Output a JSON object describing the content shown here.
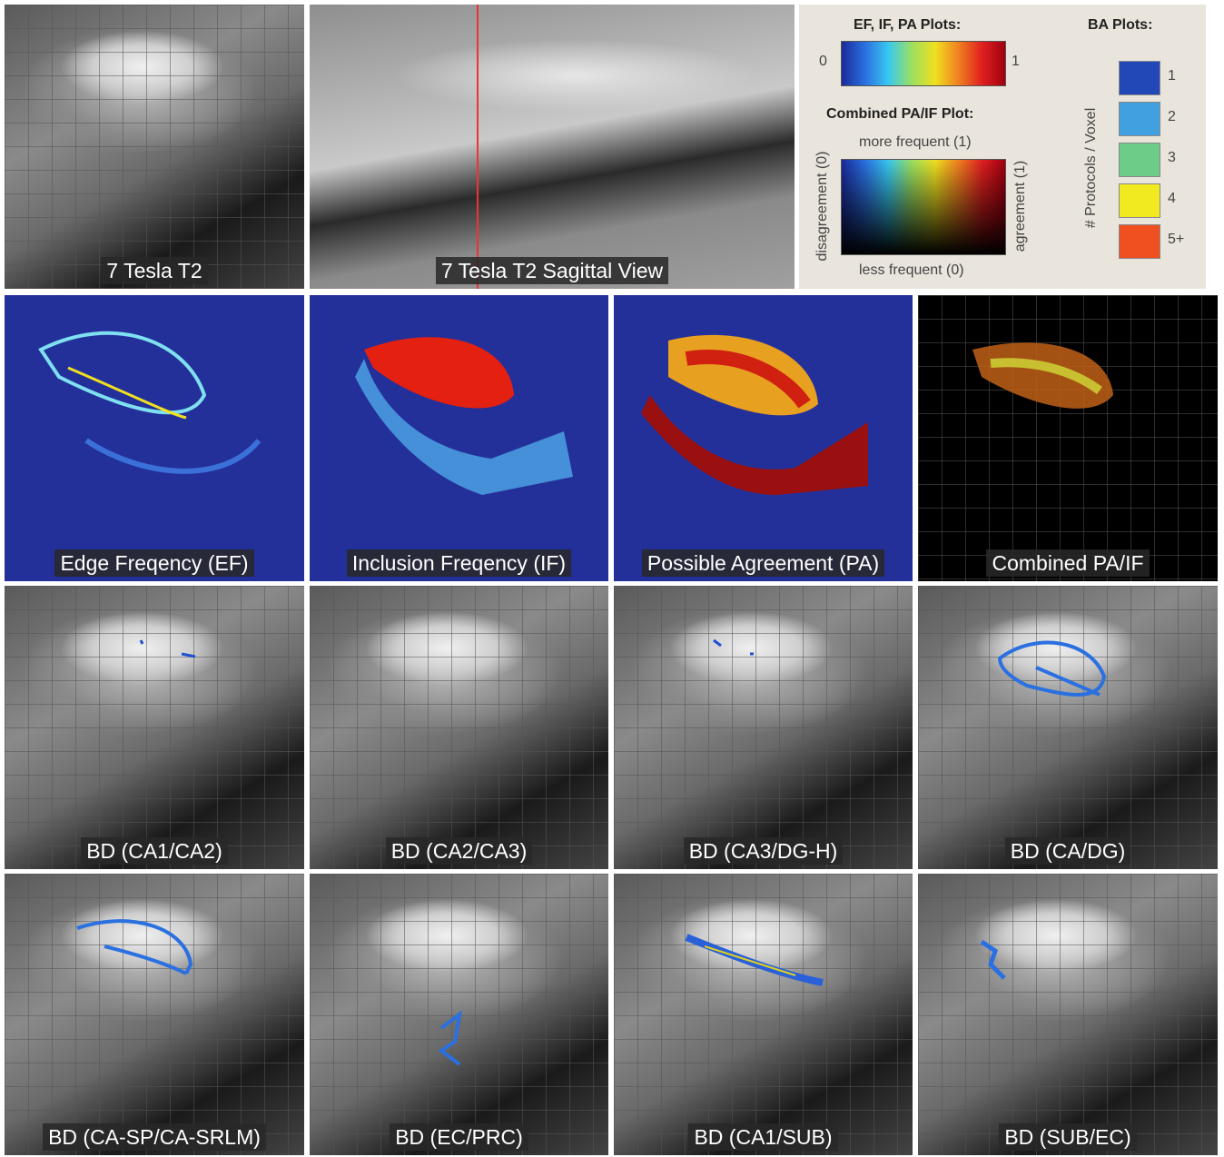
{
  "panels": [
    {
      "label": "7 Tesla T2"
    },
    {
      "label": "7 Tesla T2 Sagittal View"
    },
    {
      "label": "Edge Freqency (EF)"
    },
    {
      "label": "Inclusion Freqency (IF)"
    },
    {
      "label": "Possible Agreement (PA)"
    },
    {
      "label": "Combined PA/IF"
    },
    {
      "label": "BD (CA1/CA2)"
    },
    {
      "label": "BD (CA2/CA3)"
    },
    {
      "label": "BD (CA3/DG-H)"
    },
    {
      "label": "BD (CA/DG)"
    },
    {
      "label": "BD (CA-SP/CA-SRLM)"
    },
    {
      "label": "BD (EC/PRC)"
    },
    {
      "label": "BD (CA1/SUB)"
    },
    {
      "label": "BD (SUB/EC)"
    }
  ],
  "legend": {
    "scale": {
      "title": "EF, IF, PA Plots:",
      "min": "0",
      "max": "1"
    },
    "combined": {
      "title": "Combined PA/IF Plot:",
      "top": "more frequent (1)",
      "bottom": "less frequent (0)",
      "left": "disagreement (0)",
      "right": "agreement (1)"
    },
    "ba": {
      "title": "BA Plots:",
      "axis": "# Protocols / Voxel",
      "items": [
        "1",
        "2",
        "3",
        "4",
        "5+"
      ]
    }
  }
}
